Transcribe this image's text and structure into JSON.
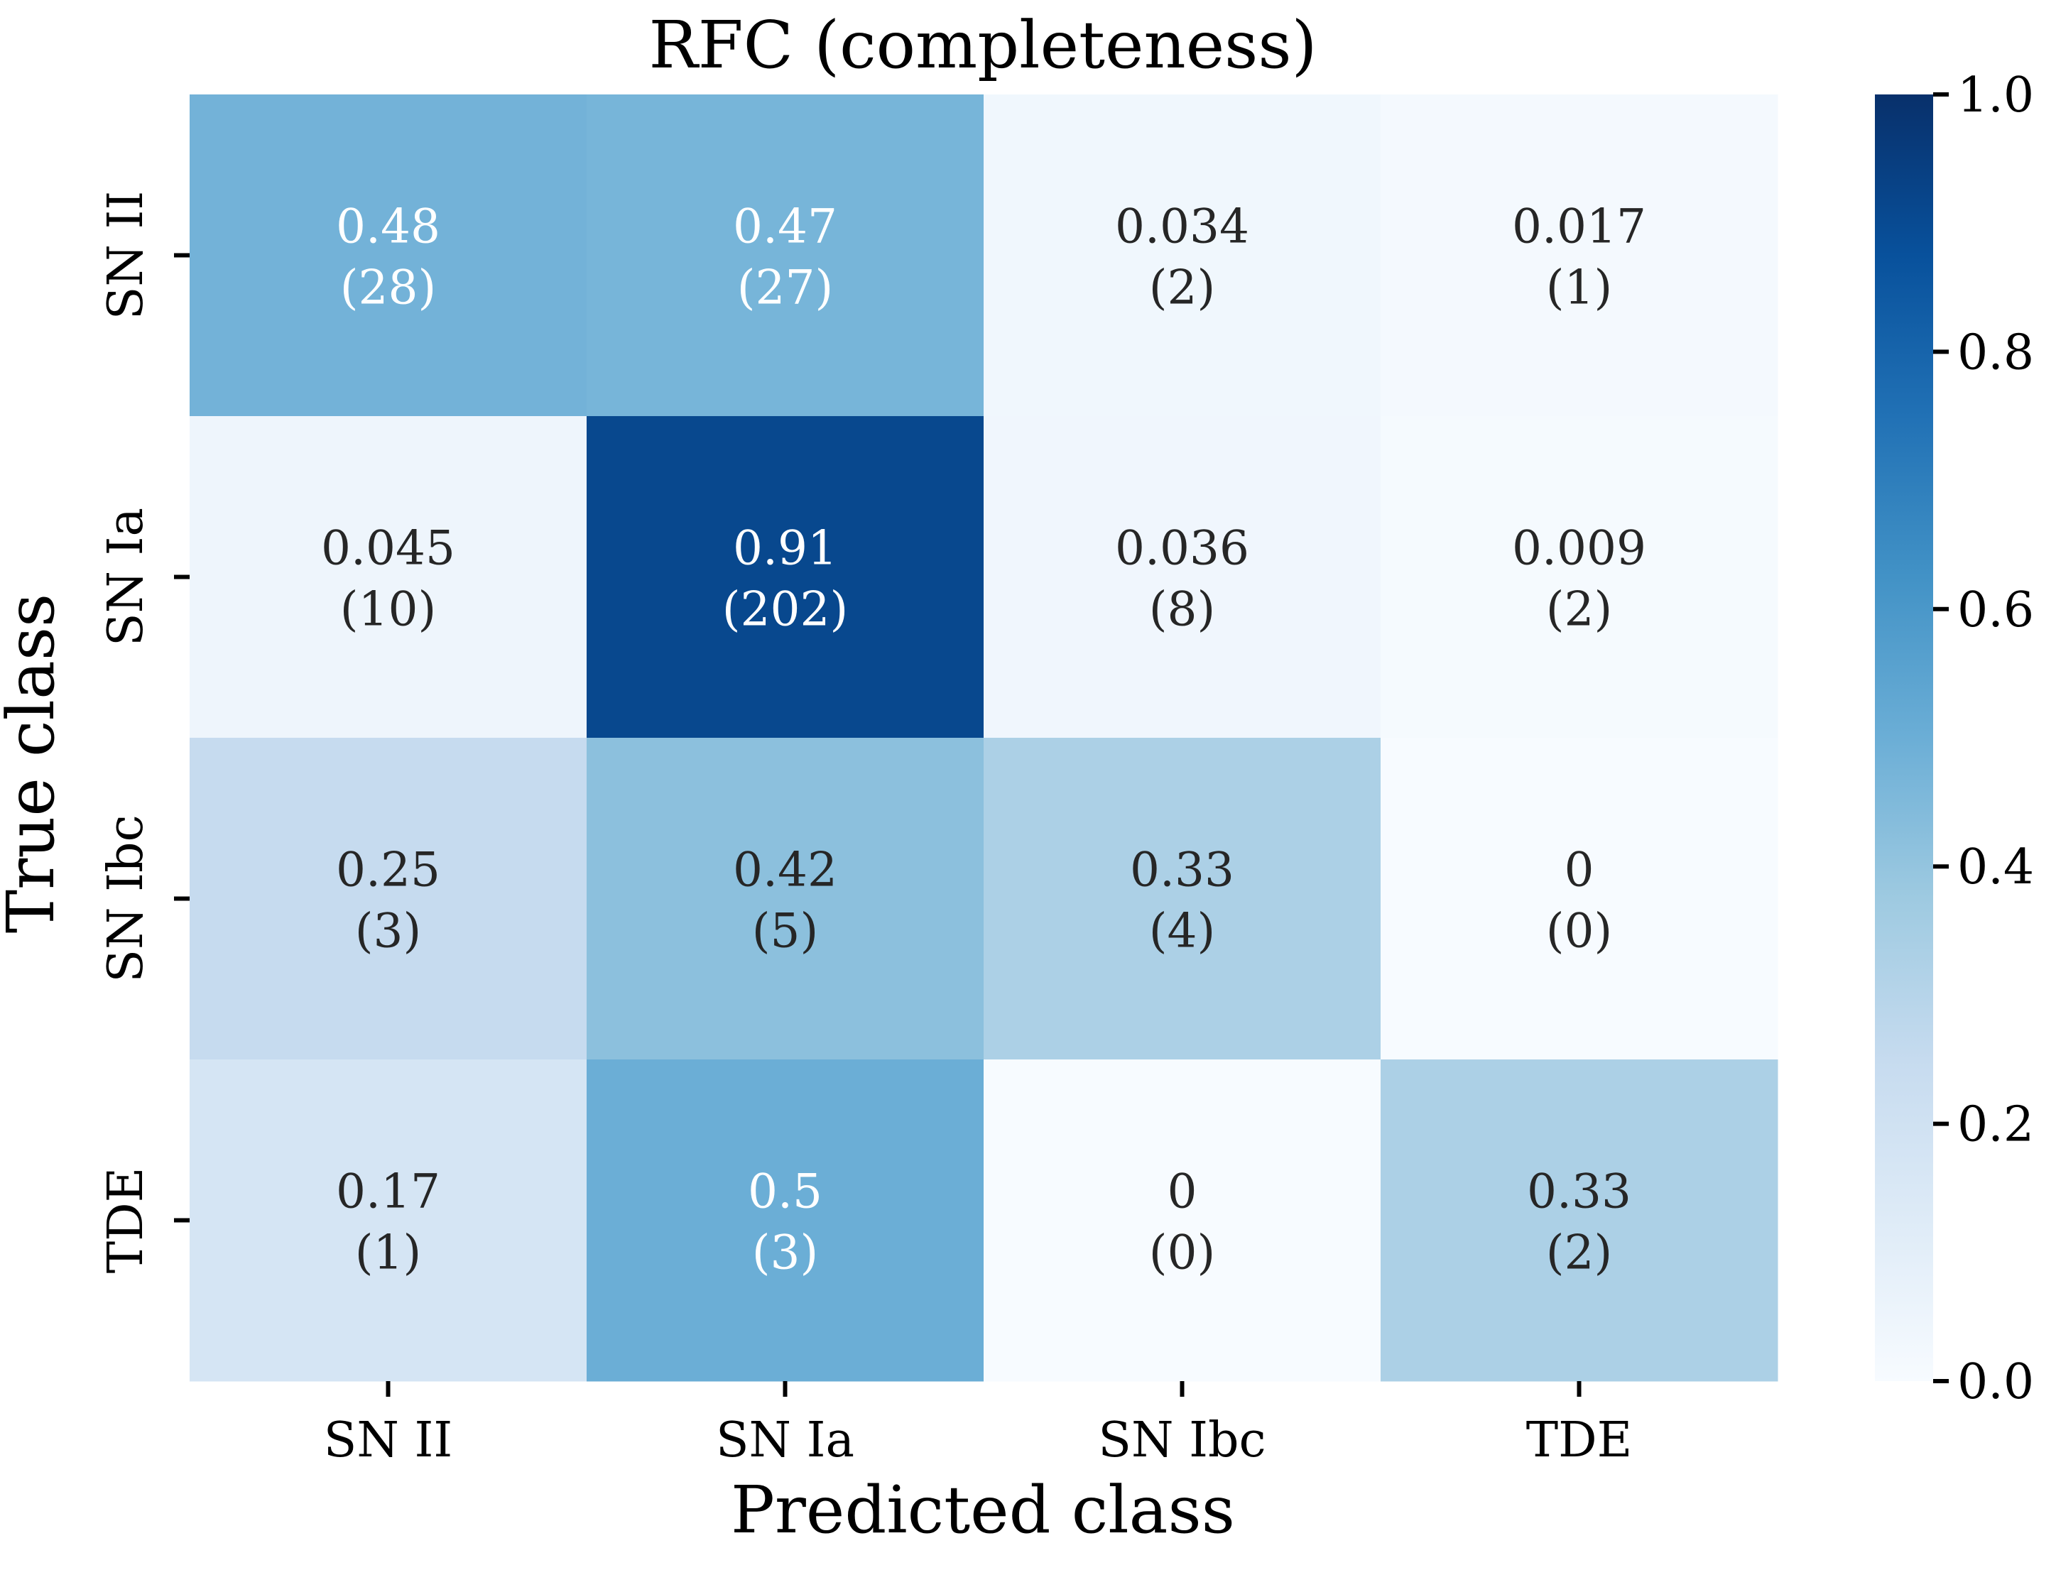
{
  "chart_data": {
    "type": "heatmap",
    "title": "RFC (completeness)",
    "xlabel": "Predicted class",
    "ylabel": "True class",
    "x_categories": [
      "SN II",
      "SN Ia",
      "SN Ibc",
      "TDE"
    ],
    "y_categories": [
      "SN II",
      "SN Ia",
      "SN Ibc",
      "TDE"
    ],
    "values": [
      [
        0.48,
        0.47,
        0.034,
        0.017
      ],
      [
        0.045,
        0.91,
        0.036,
        0.009
      ],
      [
        0.25,
        0.42,
        0.33,
        0
      ],
      [
        0.17,
        0.5,
        0,
        0.33
      ]
    ],
    "value_labels": [
      [
        "0.48",
        "0.47",
        "0.034",
        "0.017"
      ],
      [
        "0.045",
        "0.91",
        "0.036",
        "0.009"
      ],
      [
        "0.25",
        "0.42",
        "0.33",
        "0"
      ],
      [
        "0.17",
        "0.5",
        "0",
        "0.33"
      ]
    ],
    "count_labels": [
      [
        "(28)",
        "(27)",
        "(2)",
        "(1)"
      ],
      [
        "(10)",
        "(202)",
        "(8)",
        "(2)"
      ],
      [
        "(3)",
        "(5)",
        "(4)",
        "(0)"
      ],
      [
        "(1)",
        "(3)",
        "(0)",
        "(2)"
      ]
    ],
    "colorbar": {
      "colormap": "Blues",
      "range": [
        0,
        1
      ],
      "ticks": [
        "0.0",
        "0.2",
        "0.4",
        "0.6",
        "0.8",
        "1.0"
      ]
    },
    "colors": {
      "low": "#f7fbff",
      "high": "#08306b",
      "light_text": "#ffffff",
      "dark_text": "#262626"
    }
  }
}
